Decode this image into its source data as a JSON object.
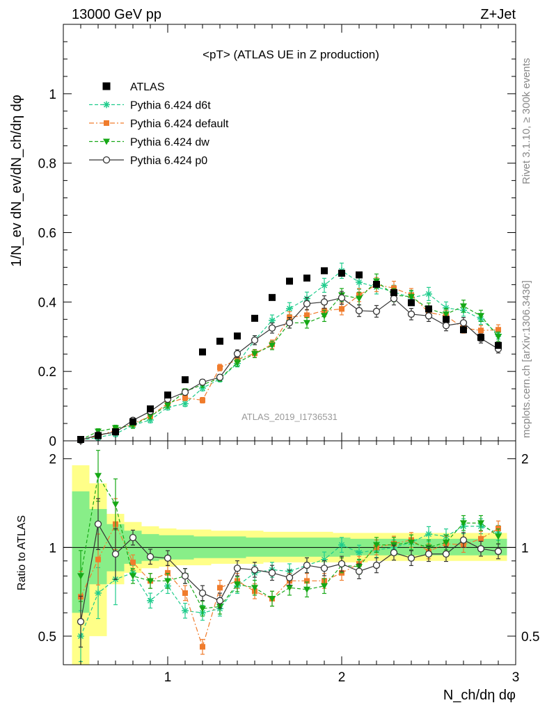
{
  "header": {
    "left": "13000 GeV pp",
    "right": "Z+Jet"
  },
  "side_text": {
    "rivet": "Rivet 3.1.10, ≥ 300k events",
    "mcplots": "mcplots.cern.ch [arXiv:1306.3436]"
  },
  "main": {
    "title": "<pT> (ATLAS UE in Z production)",
    "watermark": "ATLAS_2019_I1736531",
    "ylabel": "1/N_ev dN_ev/dN_ch/dη dφ",
    "yticks": [
      "0",
      "0.2",
      "0.4",
      "0.6",
      "0.8",
      "1"
    ]
  },
  "ratio": {
    "ylabel": "Ratio to ATLAS",
    "yticks": [
      "0.5",
      "1",
      "2"
    ],
    "xticks": [
      "1",
      "2",
      "3"
    ],
    "xlabel": "N_ch/dη dφ"
  },
  "legend": [
    {
      "label": "ATLAS",
      "color": "#000000",
      "marker": "square",
      "line": "none"
    },
    {
      "label": "Pythia 6.424 d6t",
      "color": "#1fcc8c",
      "marker": "star",
      "line": "dashed"
    },
    {
      "label": "Pythia 6.424 default",
      "color": "#f07c2c",
      "marker": "square",
      "line": "dashdot"
    },
    {
      "label": "Pythia 6.424 dw",
      "color": "#16a816",
      "marker": "triangle-down",
      "line": "dashed"
    },
    {
      "label": "Pythia 6.424 p0",
      "color": "#333333",
      "marker": "open-circle",
      "line": "solid"
    }
  ],
  "chart_data": [
    {
      "type": "scatter",
      "title": "<pT> (ATLAS UE in Z production)",
      "xlabel": "N_ch/dη dφ",
      "ylabel": "1/N_ev dN_ev/dN_ch/dη dφ",
      "xlim": [
        0.4,
        3.0
      ],
      "ylim": [
        0,
        1.2
      ],
      "grid": false,
      "legend_position": "top-left",
      "x": [
        0.5,
        0.6,
        0.7,
        0.8,
        0.9,
        1.0,
        1.1,
        1.2,
        1.3,
        1.4,
        1.5,
        1.6,
        1.7,
        1.8,
        1.9,
        2.0,
        2.1,
        2.2,
        2.3,
        2.4,
        2.5,
        2.6,
        2.7,
        2.8,
        2.9
      ],
      "series": [
        {
          "name": "ATLAS",
          "values": [
            0.004,
            0.015,
            0.026,
            0.055,
            0.092,
            0.132,
            0.176,
            0.256,
            0.287,
            0.302,
            0.353,
            0.413,
            0.46,
            0.469,
            0.49,
            0.483,
            0.478,
            0.451,
            0.427,
            0.398,
            0.38,
            0.35,
            0.32,
            0.298,
            0.275
          ]
        },
        {
          "name": "Pythia 6.424 d6t",
          "values": [
            0.002,
            0.01,
            0.02,
            0.045,
            0.06,
            0.097,
            0.107,
            0.152,
            0.178,
            0.223,
            0.29,
            0.347,
            0.381,
            0.41,
            0.448,
            0.49,
            0.457,
            0.443,
            0.429,
            0.412,
            0.423,
            0.383,
            0.376,
            0.351,
            0.307
          ]
        },
        {
          "name": "Pythia 6.424 default",
          "values": [
            0.003,
            0.014,
            0.031,
            0.049,
            0.071,
            0.108,
            0.124,
            0.117,
            0.211,
            0.234,
            0.252,
            0.278,
            0.356,
            0.362,
            0.375,
            0.38,
            0.42,
            0.45,
            0.44,
            0.42,
            0.37,
            0.36,
            0.325,
            0.318,
            0.32
          ]
        },
        {
          "name": "Pythia 6.424 dw",
          "values": [
            0.003,
            0.027,
            0.037,
            0.044,
            0.071,
            0.102,
            0.142,
            0.162,
            0.18,
            0.225,
            0.251,
            0.275,
            0.34,
            0.34,
            0.36,
            0.42,
            0.41,
            0.46,
            0.42,
            0.415,
            0.38,
            0.365,
            0.388,
            0.36,
            0.3
          ]
        },
        {
          "name": "Pythia 6.424 p0",
          "values": [
            0.002,
            0.017,
            0.025,
            0.059,
            0.085,
            0.12,
            0.14,
            0.169,
            0.183,
            0.251,
            0.29,
            0.325,
            0.34,
            0.395,
            0.4,
            0.412,
            0.375,
            0.373,
            0.41,
            0.365,
            0.36,
            0.332,
            0.34,
            0.295,
            0.265
          ]
        }
      ]
    },
    {
      "type": "scatter",
      "title": "",
      "xlabel": "N_ch/dη dφ",
      "ylabel": "Ratio to ATLAS",
      "xlim": [
        0.4,
        3.0
      ],
      "ylim": [
        0.4,
        2.3
      ],
      "yscale": "log",
      "grid": false,
      "x": [
        0.5,
        0.6,
        0.7,
        0.8,
        0.9,
        1.0,
        1.1,
        1.2,
        1.3,
        1.4,
        1.5,
        1.6,
        1.7,
        1.8,
        1.9,
        2.0,
        2.1,
        2.2,
        2.3,
        2.4,
        2.5,
        2.6,
        2.7,
        2.8,
        2.9
      ],
      "bands": [
        {
          "name": "ATLAS uncertainty (outer)",
          "color": "#ffff88",
          "lo": [
            0.35,
            0.5,
            0.75,
            0.82,
            0.85,
            0.86,
            0.87,
            0.87,
            0.88,
            0.88,
            0.88,
            0.89,
            0.89,
            0.89,
            0.89,
            0.89,
            0.89,
            0.9,
            0.9,
            0.9,
            0.9,
            0.9,
            0.9,
            0.9,
            0.9
          ],
          "hi": [
            1.9,
            1.65,
            1.3,
            1.22,
            1.18,
            1.16,
            1.15,
            1.15,
            1.14,
            1.14,
            1.14,
            1.13,
            1.13,
            1.13,
            1.13,
            1.12,
            1.12,
            1.12,
            1.12,
            1.12,
            1.12,
            1.12,
            1.12,
            1.12,
            1.12
          ]
        },
        {
          "name": "ATLAS uncertainty (inner)",
          "color": "#88ee88",
          "lo": [
            0.6,
            0.75,
            0.83,
            0.88,
            0.9,
            0.91,
            0.91,
            0.92,
            0.92,
            0.92,
            0.93,
            0.93,
            0.93,
            0.93,
            0.93,
            0.93,
            0.94,
            0.94,
            0.94,
            0.94,
            0.94,
            0.94,
            0.94,
            0.94,
            0.94
          ],
          "hi": [
            1.55,
            1.35,
            1.2,
            1.14,
            1.11,
            1.1,
            1.1,
            1.09,
            1.09,
            1.09,
            1.08,
            1.08,
            1.08,
            1.08,
            1.08,
            1.08,
            1.07,
            1.07,
            1.07,
            1.07,
            1.07,
            1.07,
            1.07,
            1.07,
            1.07
          ]
        }
      ],
      "series": [
        {
          "name": "Pythia 6.424 d6t",
          "values": [
            0.5,
            0.7,
            0.78,
            0.82,
            0.66,
            0.74,
            0.61,
            0.6,
            0.62,
            0.74,
            0.82,
            0.84,
            0.83,
            0.87,
            0.91,
            1.02,
            0.96,
            0.98,
            1.0,
            1.04,
            1.11,
            1.09,
            1.18,
            1.18,
            1.12
          ]
        },
        {
          "name": "Pythia 6.424 default",
          "values": [
            0.68,
            0.91,
            1.2,
            0.89,
            0.77,
            0.82,
            0.7,
            0.46,
            0.73,
            0.77,
            0.71,
            0.67,
            0.77,
            0.77,
            0.77,
            0.82,
            0.88,
            1.0,
            1.03,
            1.06,
            0.97,
            1.03,
            1.02,
            1.07,
            1.16
          ]
        },
        {
          "name": "Pythia 6.424 dw",
          "values": [
            0.8,
            1.75,
            1.4,
            0.8,
            0.77,
            0.77,
            0.8,
            0.62,
            0.63,
            0.75,
            0.73,
            0.67,
            0.73,
            0.72,
            0.74,
            0.87,
            0.86,
            1.02,
            1.02,
            1.04,
            1.0,
            1.04,
            1.21,
            1.21,
            1.09
          ]
        },
        {
          "name": "Pythia 6.424 p0",
          "values": [
            0.56,
            1.2,
            0.95,
            1.08,
            0.93,
            0.92,
            0.8,
            0.7,
            0.66,
            0.85,
            0.84,
            0.82,
            0.79,
            0.87,
            0.85,
            0.88,
            0.83,
            0.87,
            0.96,
            0.92,
            0.95,
            0.95,
            1.06,
            0.99,
            0.97
          ]
        }
      ]
    }
  ]
}
